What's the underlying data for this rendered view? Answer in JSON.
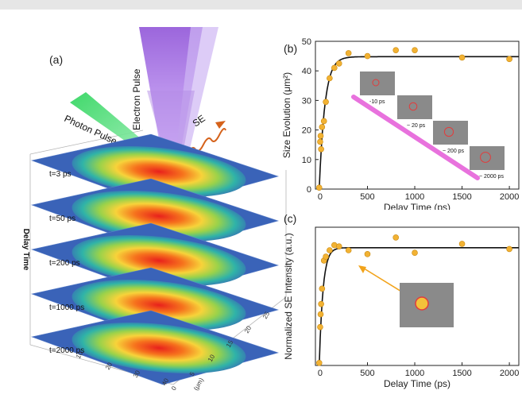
{
  "panels": {
    "a": {
      "letter": "(a)",
      "beam_labels": {
        "electron": "Electron Pulse",
        "photon": "Photon Pulse",
        "se": "SE"
      },
      "delay_axis_label": "Delay Time",
      "layers": [
        "t=3 ps",
        "t=50 ps",
        "t=200 ps",
        "t=1000 ps",
        "t=2000 ps"
      ],
      "x_ticks": [
        "10",
        "20",
        "30",
        "40"
      ],
      "y_ticks": [
        "0",
        "5",
        "10",
        "15",
        "20",
        "25"
      ],
      "unit_label": "(μm)"
    },
    "b": {
      "letter": "(b)",
      "inset_labels": [
        "-10 ps",
        "~ 20 ps",
        "~ 200 ps",
        "~ 2000 ps"
      ]
    },
    "c": {
      "letter": "(c)"
    }
  },
  "chart_data": [
    {
      "type": "scatter",
      "title": "",
      "xlabel": "Delay Time (ps)",
      "ylabel": "Size Evolution (μm²)",
      "xlim": [
        -50,
        2100
      ],
      "ylim": [
        0,
        50
      ],
      "x_ticks": [
        0,
        500,
        1000,
        1500,
        2000
      ],
      "y_ticks": [
        0,
        10,
        20,
        30,
        40,
        50
      ],
      "points": [
        {
          "x": -10,
          "y": 0.5
        },
        {
          "x": 0,
          "y": 16
        },
        {
          "x": 5,
          "y": 18
        },
        {
          "x": 10,
          "y": 13.5
        },
        {
          "x": 20,
          "y": 21
        },
        {
          "x": 40,
          "y": 23
        },
        {
          "x": 60,
          "y": 29.5
        },
        {
          "x": 100,
          "y": 37.5
        },
        {
          "x": 150,
          "y": 41
        },
        {
          "x": 200,
          "y": 42.5
        },
        {
          "x": 300,
          "y": 46
        },
        {
          "x": 500,
          "y": 45
        },
        {
          "x": 800,
          "y": 47
        },
        {
          "x": 1000,
          "y": 47
        },
        {
          "x": 1500,
          "y": 44.5
        },
        {
          "x": 2000,
          "y": 44
        }
      ],
      "fit": {
        "model": "saturating exponential",
        "plateau": 44.8,
        "tau_ps": 60
      }
    },
    {
      "type": "scatter",
      "title": "",
      "xlabel": "Delay Time (ps)",
      "ylabel": "Normalized SE Intensity (a.u.)",
      "xlim": [
        -50,
        2100
      ],
      "ylim": [
        0,
        1.08
      ],
      "x_ticks": [
        0,
        500,
        1000,
        1500,
        2000
      ],
      "y_ticks": [],
      "points": [
        {
          "x": -10,
          "y": 0.02
        },
        {
          "x": 0,
          "y": 0.3
        },
        {
          "x": 5,
          "y": 0.4
        },
        {
          "x": 10,
          "y": 0.48
        },
        {
          "x": 20,
          "y": 0.6
        },
        {
          "x": 40,
          "y": 0.82
        },
        {
          "x": 60,
          "y": 0.85
        },
        {
          "x": 100,
          "y": 0.9
        },
        {
          "x": 150,
          "y": 0.94
        },
        {
          "x": 200,
          "y": 0.93
        },
        {
          "x": 300,
          "y": 0.9
        },
        {
          "x": 500,
          "y": 0.87
        },
        {
          "x": 800,
          "y": 1.0
        },
        {
          "x": 1000,
          "y": 0.88
        },
        {
          "x": 1500,
          "y": 0.95
        },
        {
          "x": 2000,
          "y": 0.91
        }
      ],
      "fit": {
        "model": "saturating exponential",
        "plateau": 0.92,
        "tau_ps": 40
      }
    }
  ]
}
